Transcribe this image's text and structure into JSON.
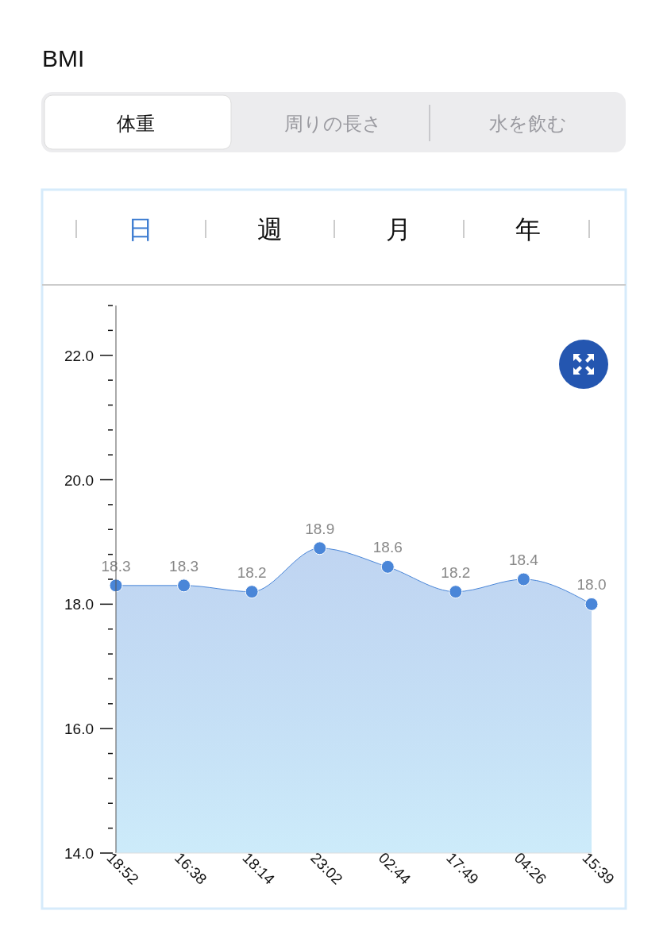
{
  "chart_data": [
    {
      "type": "other",
      "title": "BMI",
      "annotations": [
        "体重",
        "周りの長さ",
        "水を飲む",
        "日",
        "週",
        "月",
        "年"
      ]
    },
    {
      "type": "area",
      "categories": [
        "18:52",
        "16:38",
        "18:14",
        "23:02",
        "02:44",
        "17:49",
        "04:26",
        "15:39"
      ],
      "series": [
        {
          "color": "#4a86d8",
          "values": [
            18.3,
            18.3,
            18.2,
            18.9,
            18.6,
            18.2,
            18.4,
            18.0
          ],
          "value_labels": [
            "18.3",
            "18.3",
            "18.2",
            "18.9",
            "18.6",
            "18.2",
            "18.4",
            "18.0"
          ]
        }
      ],
      "ylim": [
        14,
        22.8
      ],
      "yticks": [
        {
          "value": 14,
          "label": "14.0"
        },
        {
          "value": 14.4,
          "label": null
        },
        {
          "value": 14.8,
          "label": null
        },
        {
          "value": 15.2,
          "label": null
        },
        {
          "value": 15.6,
          "label": null
        },
        {
          "value": 16,
          "label": "16.0"
        },
        {
          "value": 16.4,
          "label": null
        },
        {
          "value": 16.8,
          "label": null
        },
        {
          "value": 17.2,
          "label": null
        },
        {
          "value": 17.6,
          "label": null
        },
        {
          "value": 18,
          "label": "18.0"
        },
        {
          "value": 18.4,
          "label": null
        },
        {
          "value": 18.8,
          "label": null
        },
        {
          "value": 19.2,
          "label": null
        },
        {
          "value": 19.6,
          "label": null
        },
        {
          "value": 20,
          "label": "20.0"
        },
        {
          "value": 20.4,
          "label": null
        },
        {
          "value": 20.8,
          "label": null
        },
        {
          "value": 21.2,
          "label": null
        },
        {
          "value": 21.6,
          "label": null
        },
        {
          "value": 22,
          "label": "22.0"
        },
        {
          "value": 22.4,
          "label": null
        },
        {
          "value": 22.8,
          "label": null
        }
      ],
      "marker": "circle",
      "grid": false
    }
  ]
}
